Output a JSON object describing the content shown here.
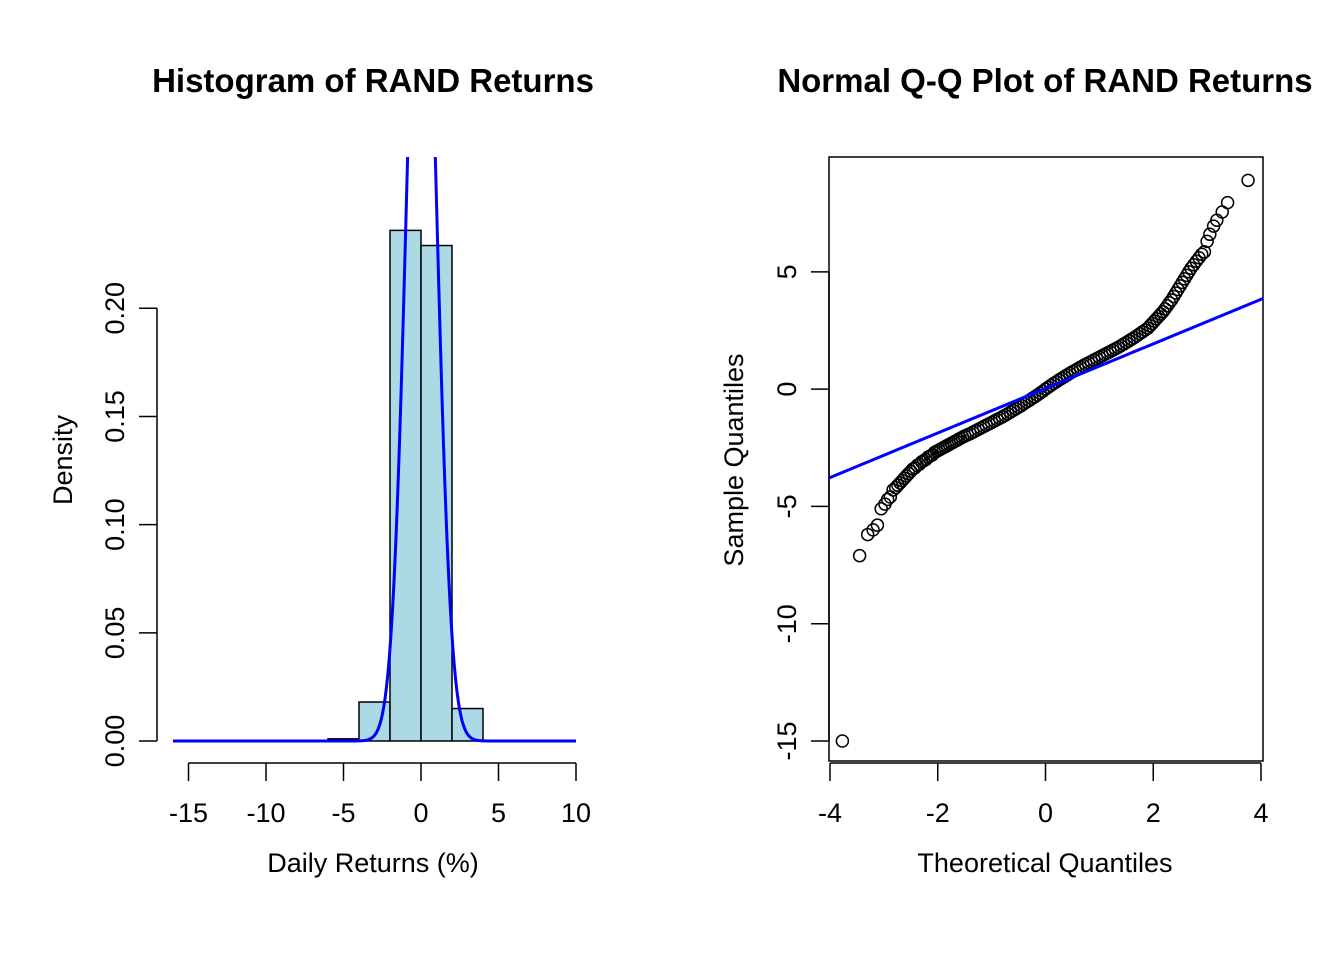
{
  "chart_data": [
    {
      "type": "histogram",
      "title": "Histogram of RAND Returns",
      "xlabel": "Daily Returns (%)",
      "ylabel": "Density",
      "xlim": [
        -16,
        10
      ],
      "ylim": [
        0,
        0.22
      ],
      "xticks": [
        -15,
        -10,
        -5,
        0,
        5,
        10
      ],
      "xtick_labels": [
        "-15",
        "-10",
        "-5",
        "0",
        "5",
        "10"
      ],
      "yticks": [
        0.0,
        0.05,
        0.1,
        0.15,
        0.2
      ],
      "ytick_labels": [
        "0.00",
        "0.05",
        "0.10",
        "0.15",
        "0.20"
      ],
      "bins": [
        {
          "x0": -6,
          "x1": -4,
          "density": 0.001
        },
        {
          "x0": -4,
          "x1": -2,
          "density": 0.018
        },
        {
          "x0": -2,
          "x1": 0,
          "density": 0.236
        },
        {
          "x0": 0,
          "x1": 2,
          "density": 0.229
        },
        {
          "x0": 2,
          "x1": 4,
          "density": 0.015
        }
      ],
      "bar_color": "#add8e6",
      "density_curve": {
        "type": "normal",
        "mean": 0.03,
        "sd": 0.95,
        "color": "#0000ff",
        "x_range": [
          -16,
          10
        ]
      },
      "grid": false
    },
    {
      "type": "scatter",
      "title": "Normal Q-Q Plot of RAND Returns",
      "xlabel": "Theoretical Quantiles",
      "ylabel": "Sample Quantiles",
      "xlim": [
        -4,
        4
      ],
      "ylim": [
        -15,
        9
      ],
      "xticks": [
        -4,
        -2,
        0,
        2,
        4
      ],
      "xtick_labels": [
        "-4",
        "-2",
        "0",
        "2",
        "4"
      ],
      "yticks": [
        -15,
        -10,
        -5,
        0,
        5
      ],
      "ytick_labels": [
        "-15",
        "-10",
        "-5",
        "0",
        "5"
      ],
      "reference_line": {
        "intercept": 0.03,
        "slope": 0.95,
        "color": "#0000ff"
      },
      "points": [
        [
          -3.77,
          -15.0
        ],
        [
          -3.45,
          -7.1
        ],
        [
          -3.3,
          -6.2
        ],
        [
          -3.2,
          -6.0
        ],
        [
          -3.12,
          -5.8
        ],
        [
          -3.05,
          -5.1
        ],
        [
          -2.98,
          -4.9
        ],
        [
          -2.93,
          -4.7
        ],
        [
          -2.88,
          -4.6
        ],
        [
          -2.83,
          -4.3
        ],
        [
          -2.78,
          -4.2
        ],
        [
          -2.74,
          -4.1
        ],
        [
          -2.7,
          -4.0
        ],
        [
          -2.66,
          -3.9
        ],
        [
          -2.62,
          -3.8
        ],
        [
          -2.58,
          -3.7
        ],
        [
          -2.54,
          -3.6
        ],
        [
          -2.5,
          -3.5
        ],
        [
          -2.46,
          -3.4
        ],
        [
          -2.42,
          -3.35
        ],
        [
          -2.38,
          -3.25
        ],
        [
          -2.34,
          -3.2
        ],
        [
          -2.3,
          -3.1
        ],
        [
          -2.26,
          -3.05
        ],
        [
          -2.22,
          -3.0
        ],
        [
          -2.18,
          -2.9
        ],
        [
          -2.14,
          -2.85
        ],
        [
          -2.1,
          -2.8
        ],
        [
          -2.06,
          -2.7
        ],
        [
          -2.02,
          -2.65
        ],
        [
          -1.98,
          -2.6
        ],
        [
          -1.94,
          -2.55
        ],
        [
          -1.9,
          -2.5
        ],
        [
          -1.86,
          -2.45
        ],
        [
          -1.82,
          -2.4
        ],
        [
          -1.78,
          -2.35
        ],
        [
          -1.74,
          -2.3
        ],
        [
          -1.7,
          -2.25
        ],
        [
          -1.66,
          -2.2
        ],
        [
          -1.62,
          -2.15
        ],
        [
          -1.58,
          -2.1
        ],
        [
          -1.54,
          -2.05
        ],
        [
          -1.5,
          -2.0
        ],
        [
          -1.45,
          -1.95
        ],
        [
          -1.4,
          -1.9
        ],
        [
          -1.35,
          -1.84
        ],
        [
          -1.3,
          -1.78
        ],
        [
          -1.25,
          -1.72
        ],
        [
          -1.2,
          -1.66
        ],
        [
          -1.15,
          -1.6
        ],
        [
          -1.1,
          -1.54
        ],
        [
          -1.05,
          -1.48
        ],
        [
          -1.0,
          -1.42
        ],
        [
          -0.95,
          -1.36
        ],
        [
          -0.9,
          -1.3
        ],
        [
          -0.85,
          -1.24
        ],
        [
          -0.8,
          -1.18
        ],
        [
          -0.75,
          -1.12
        ],
        [
          -0.7,
          -1.05
        ],
        [
          -0.65,
          -0.98
        ],
        [
          -0.6,
          -0.91
        ],
        [
          -0.55,
          -0.84
        ],
        [
          -0.5,
          -0.77
        ],
        [
          -0.45,
          -0.7
        ],
        [
          -0.4,
          -0.62
        ],
        [
          -0.35,
          -0.55
        ],
        [
          -0.3,
          -0.48
        ],
        [
          -0.25,
          -0.4
        ],
        [
          -0.2,
          -0.33
        ],
        [
          -0.15,
          -0.25
        ],
        [
          -0.1,
          -0.17
        ],
        [
          -0.05,
          -0.09
        ],
        [
          0.0,
          0.0
        ],
        [
          0.05,
          0.08
        ],
        [
          0.1,
          0.16
        ],
        [
          0.15,
          0.24
        ],
        [
          0.2,
          0.31
        ],
        [
          0.25,
          0.39
        ],
        [
          0.3,
          0.46
        ],
        [
          0.35,
          0.53
        ],
        [
          0.4,
          0.6
        ],
        [
          0.45,
          0.67
        ],
        [
          0.5,
          0.74
        ],
        [
          0.55,
          0.8
        ],
        [
          0.6,
          0.87
        ],
        [
          0.65,
          0.93
        ],
        [
          0.7,
          1.0
        ],
        [
          0.75,
          1.06
        ],
        [
          0.8,
          1.12
        ],
        [
          0.85,
          1.18
        ],
        [
          0.9,
          1.24
        ],
        [
          0.95,
          1.3
        ],
        [
          1.0,
          1.36
        ],
        [
          1.05,
          1.42
        ],
        [
          1.1,
          1.48
        ],
        [
          1.15,
          1.54
        ],
        [
          1.2,
          1.6
        ],
        [
          1.25,
          1.66
        ],
        [
          1.3,
          1.72
        ],
        [
          1.35,
          1.78
        ],
        [
          1.4,
          1.85
        ],
        [
          1.45,
          1.92
        ],
        [
          1.5,
          1.99
        ],
        [
          1.55,
          2.06
        ],
        [
          1.6,
          2.13
        ],
        [
          1.65,
          2.2
        ],
        [
          1.7,
          2.28
        ],
        [
          1.75,
          2.36
        ],
        [
          1.8,
          2.44
        ],
        [
          1.85,
          2.52
        ],
        [
          1.9,
          2.6
        ],
        [
          1.94,
          2.7
        ],
        [
          1.98,
          2.8
        ],
        [
          2.02,
          2.9
        ],
        [
          2.06,
          3.0
        ],
        [
          2.1,
          3.1
        ],
        [
          2.14,
          3.2
        ],
        [
          2.18,
          3.3
        ],
        [
          2.22,
          3.42
        ],
        [
          2.26,
          3.55
        ],
        [
          2.3,
          3.68
        ],
        [
          2.34,
          3.8
        ],
        [
          2.38,
          3.95
        ],
        [
          2.42,
          4.1
        ],
        [
          2.46,
          4.25
        ],
        [
          2.5,
          4.4
        ],
        [
          2.54,
          4.55
        ],
        [
          2.58,
          4.7
        ],
        [
          2.62,
          4.85
        ],
        [
          2.66,
          5.0
        ],
        [
          2.7,
          5.15
        ],
        [
          2.75,
          5.3
        ],
        [
          2.8,
          5.45
        ],
        [
          2.85,
          5.6
        ],
        [
          2.9,
          5.75
        ],
        [
          2.95,
          5.85
        ],
        [
          3.0,
          6.3
        ],
        [
          3.05,
          6.6
        ],
        [
          3.12,
          6.95
        ],
        [
          3.18,
          7.2
        ],
        [
          3.28,
          7.55
        ],
        [
          3.38,
          7.95
        ],
        [
          3.76,
          8.9
        ]
      ],
      "grid": false
    }
  ]
}
